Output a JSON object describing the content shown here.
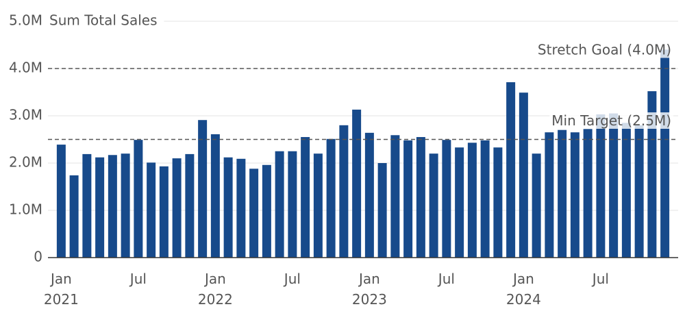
{
  "chart_data": {
    "type": "bar",
    "y_axis_title": "Sum Total Sales",
    "categories": [
      "Jan 2021",
      null,
      null,
      null,
      null,
      null,
      "Jul",
      null,
      null,
      null,
      null,
      null,
      "Jan 2022",
      null,
      null,
      null,
      null,
      null,
      "Jul",
      null,
      null,
      null,
      null,
      null,
      "Jan 2023",
      null,
      null,
      null,
      null,
      null,
      "Jul",
      null,
      null,
      null,
      null,
      null,
      "Jan 2024",
      null,
      null,
      null,
      null,
      null,
      "Jul",
      null,
      null,
      null,
      null,
      null
    ],
    "values": [
      2390000,
      1740000,
      2190000,
      2120000,
      2170000,
      2200000,
      2490000,
      2010000,
      1930000,
      2100000,
      2190000,
      2910000,
      2610000,
      2120000,
      2090000,
      1880000,
      1960000,
      2250000,
      2250000,
      2550000,
      2200000,
      2510000,
      2800000,
      3130000,
      2640000,
      2000000,
      2590000,
      2480000,
      2550000,
      2200000,
      2490000,
      2330000,
      2430000,
      2480000,
      2330000,
      3710000,
      3490000,
      2200000,
      2650000,
      2700000,
      2650000,
      2720000,
      3030000,
      3050000,
      2850000,
      2800000,
      3520000,
      4400000
    ],
    "color": "#174a8b",
    "ylim": [
      0,
      5000000
    ],
    "yticks": [
      0,
      {
        "value": 1000000,
        "label": "1.0M"
      },
      {
        "value": 2000000,
        "label": "2.0M"
      },
      {
        "value": 3000000,
        "label": "3.0M"
      },
      {
        "value": 4000000,
        "label": "4.0M"
      },
      {
        "value": 5000000,
        "label": "5.0M"
      }
    ],
    "grid": true,
    "reference_lines": [
      {
        "value": 4000000,
        "label": "Stretch Goal (4.0M)"
      },
      {
        "value": 2500000,
        "label": "Min Target (2.5M)"
      }
    ]
  }
}
